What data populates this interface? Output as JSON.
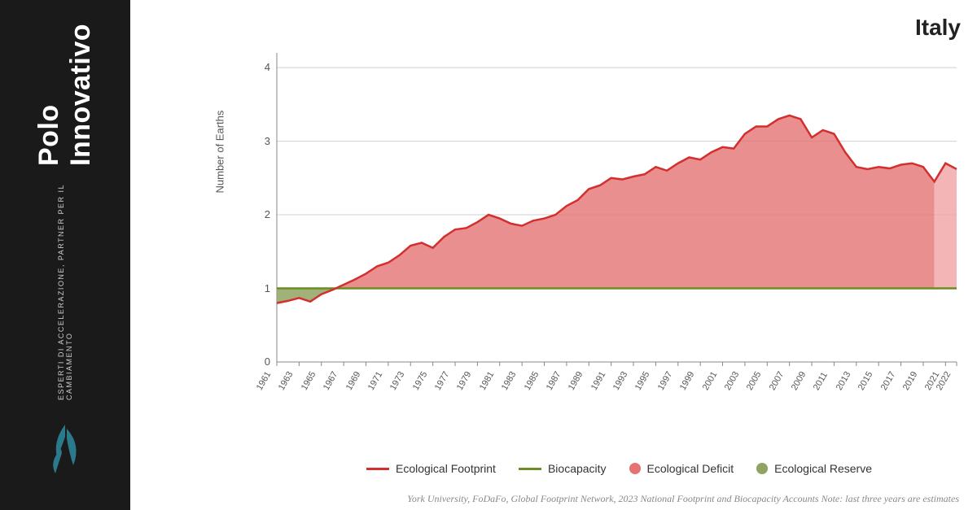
{
  "brand": {
    "main": "Polo Innovativo",
    "sub": "ESPERTI DI ACCELERAZIONE, PARTNER PER IL CAMBIAMENTO",
    "icon_color": "#2a7a8c"
  },
  "title": "Italy",
  "ylabel": "Number of Earths",
  "source": "York University, FoDaFo, Global Footprint Network, 2023 National Footprint and Biocapacity Accounts Note: last three years are estimates",
  "legend": {
    "footprint": "Ecological Footprint",
    "biocapacity": "Biocapacity",
    "deficit": "Ecological Deficit",
    "reserve": "Ecological Reserve"
  },
  "colors": {
    "footprint_line": "#d32f2f",
    "biocapacity_line": "#6b8e23",
    "deficit_fill": "#e57373",
    "deficit_fill_estimate": "#f0a3a3",
    "reserve_fill": "#8fa362",
    "grid": "#d0d0d0",
    "axis": "#888888",
    "sidebar_bg": "#1a1a1a",
    "text": "#555555"
  },
  "chart": {
    "type": "area",
    "ylim": [
      0,
      4.2
    ],
    "yticks": [
      0,
      1,
      2,
      3,
      4
    ],
    "x_start": 1961,
    "x_end": 2022,
    "xticks": [
      1961,
      1963,
      1965,
      1967,
      1969,
      1971,
      1973,
      1975,
      1977,
      1979,
      1981,
      1983,
      1985,
      1987,
      1989,
      1991,
      1993,
      1995,
      1997,
      1999,
      2001,
      2003,
      2005,
      2007,
      2009,
      2011,
      2013,
      2015,
      2017,
      2019,
      2021,
      2022
    ],
    "biocapacity": 1.0,
    "estimate_start_year": 2020,
    "footprint": [
      {
        "y": 1961,
        "v": 0.8
      },
      {
        "y": 1962,
        "v": 0.83
      },
      {
        "y": 1963,
        "v": 0.87
      },
      {
        "y": 1964,
        "v": 0.82
      },
      {
        "y": 1965,
        "v": 0.92
      },
      {
        "y": 1966,
        "v": 0.98
      },
      {
        "y": 1967,
        "v": 1.05
      },
      {
        "y": 1968,
        "v": 1.12
      },
      {
        "y": 1969,
        "v": 1.2
      },
      {
        "y": 1970,
        "v": 1.3
      },
      {
        "y": 1971,
        "v": 1.35
      },
      {
        "y": 1972,
        "v": 1.45
      },
      {
        "y": 1973,
        "v": 1.58
      },
      {
        "y": 1974,
        "v": 1.62
      },
      {
        "y": 1975,
        "v": 1.55
      },
      {
        "y": 1976,
        "v": 1.7
      },
      {
        "y": 1977,
        "v": 1.8
      },
      {
        "y": 1978,
        "v": 1.82
      },
      {
        "y": 1979,
        "v": 1.9
      },
      {
        "y": 1980,
        "v": 2.0
      },
      {
        "y": 1981,
        "v": 1.95
      },
      {
        "y": 1982,
        "v": 1.88
      },
      {
        "y": 1983,
        "v": 1.85
      },
      {
        "y": 1984,
        "v": 1.92
      },
      {
        "y": 1985,
        "v": 1.95
      },
      {
        "y": 1986,
        "v": 2.0
      },
      {
        "y": 1987,
        "v": 2.12
      },
      {
        "y": 1988,
        "v": 2.2
      },
      {
        "y": 1989,
        "v": 2.35
      },
      {
        "y": 1990,
        "v": 2.4
      },
      {
        "y": 1991,
        "v": 2.5
      },
      {
        "y": 1992,
        "v": 2.48
      },
      {
        "y": 1993,
        "v": 2.52
      },
      {
        "y": 1994,
        "v": 2.55
      },
      {
        "y": 1995,
        "v": 2.65
      },
      {
        "y": 1996,
        "v": 2.6
      },
      {
        "y": 1997,
        "v": 2.7
      },
      {
        "y": 1998,
        "v": 2.78
      },
      {
        "y": 1999,
        "v": 2.75
      },
      {
        "y": 2000,
        "v": 2.85
      },
      {
        "y": 2001,
        "v": 2.92
      },
      {
        "y": 2002,
        "v": 2.9
      },
      {
        "y": 2003,
        "v": 3.1
      },
      {
        "y": 2004,
        "v": 3.2
      },
      {
        "y": 2005,
        "v": 3.2
      },
      {
        "y": 2006,
        "v": 3.3
      },
      {
        "y": 2007,
        "v": 3.35
      },
      {
        "y": 2008,
        "v": 3.3
      },
      {
        "y": 2009,
        "v": 3.05
      },
      {
        "y": 2010,
        "v": 3.15
      },
      {
        "y": 2011,
        "v": 3.1
      },
      {
        "y": 2012,
        "v": 2.85
      },
      {
        "y": 2013,
        "v": 2.65
      },
      {
        "y": 2014,
        "v": 2.62
      },
      {
        "y": 2015,
        "v": 2.65
      },
      {
        "y": 2016,
        "v": 2.63
      },
      {
        "y": 2017,
        "v": 2.68
      },
      {
        "y": 2018,
        "v": 2.7
      },
      {
        "y": 2019,
        "v": 2.65
      },
      {
        "y": 2020,
        "v": 2.45
      },
      {
        "y": 2021,
        "v": 2.7
      },
      {
        "y": 2022,
        "v": 2.62
      }
    ]
  }
}
